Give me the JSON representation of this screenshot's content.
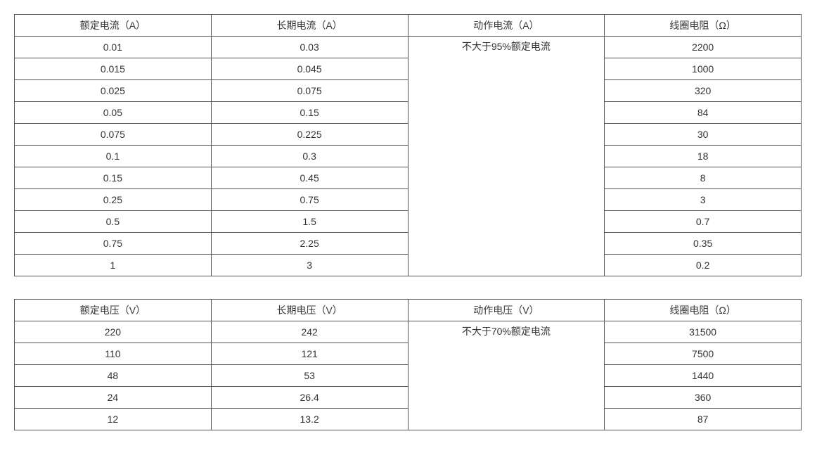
{
  "text_color": "#333333",
  "border_color": "#555555",
  "background_color": "#ffffff",
  "font_size": 14,
  "table1": {
    "columns": [
      "额定电流（A）",
      "长期电流（A）",
      "动作电流（A）",
      "线圈电阻（Ω）"
    ],
    "merged_col3": "不大于95%额定电流",
    "rows": [
      [
        "0.01",
        "0.03",
        "2200"
      ],
      [
        "0.015",
        "0.045",
        "1000"
      ],
      [
        "0.025",
        "0.075",
        "320"
      ],
      [
        "0.05",
        "0.15",
        "84"
      ],
      [
        "0.075",
        "0.225",
        "30"
      ],
      [
        "0.1",
        "0.3",
        "18"
      ],
      [
        "0.15",
        "0.45",
        "8"
      ],
      [
        "0.25",
        "0.75",
        "3"
      ],
      [
        "0.5",
        "1.5",
        "0.7"
      ],
      [
        "0.75",
        "2.25",
        "0.35"
      ],
      [
        "1",
        "3",
        "0.2"
      ]
    ]
  },
  "table2": {
    "columns": [
      "额定电压（V）",
      "长期电压（V）",
      "动作电压（V）",
      "线圈电阻（Ω）"
    ],
    "merged_col3": "不大于70%额定电流",
    "rows": [
      [
        "220",
        "242",
        "31500"
      ],
      [
        "110",
        "121",
        "7500"
      ],
      [
        "48",
        "53",
        "1440"
      ],
      [
        "24",
        "26.4",
        "360"
      ],
      [
        "12",
        "13.2",
        "87"
      ]
    ]
  }
}
